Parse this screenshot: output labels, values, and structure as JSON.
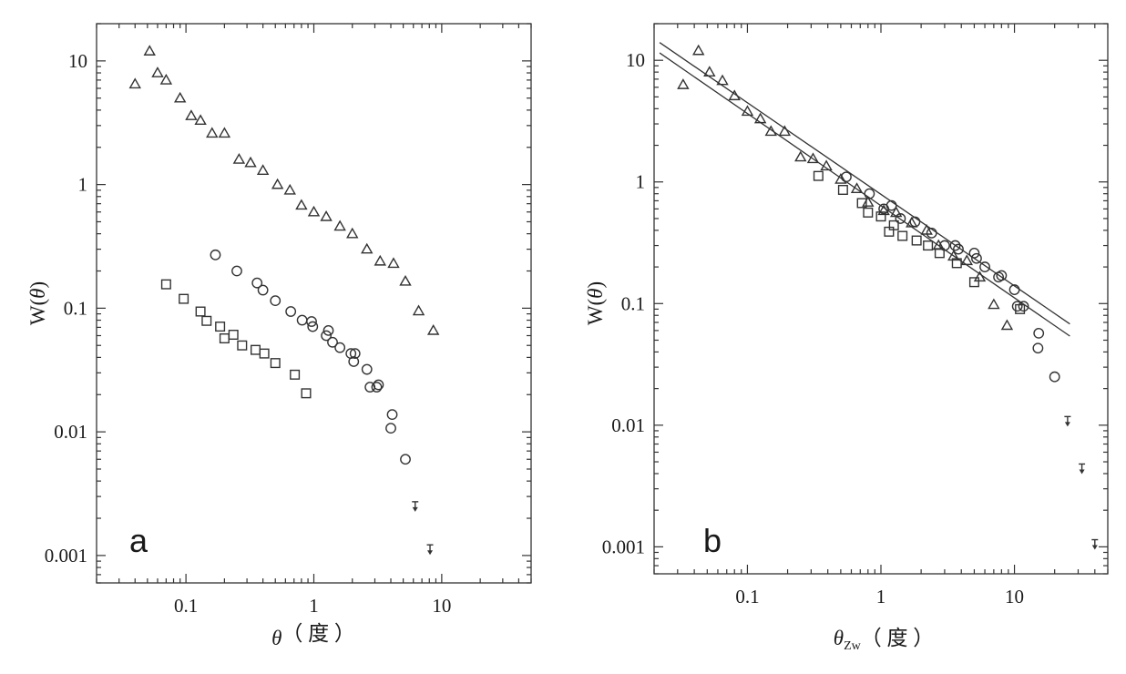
{
  "chart_data": [
    {
      "type": "scatter",
      "panel_label": "a",
      "xscale": "log",
      "yscale": "log",
      "xlim": [
        0.02,
        50
      ],
      "ylim": [
        0.0006,
        20
      ],
      "xticks": [
        0.1,
        1,
        10
      ],
      "xtick_labels": [
        "0.1",
        "1",
        "10"
      ],
      "yticks": [
        0.001,
        0.01,
        0.1,
        1,
        10
      ],
      "ytick_labels": [
        "0.001",
        "0.01",
        "0.1",
        "1",
        "10"
      ],
      "xlabel_main": "θ",
      "xlabel_sub": "",
      "xlabel_suffix": "（ 度 ）",
      "ylabel_main": "W(",
      "ylabel_var": "θ",
      "ylabel_close": ")",
      "grid": false,
      "series": [
        {
          "marker": "triangle",
          "points": [
            [
              0.04,
              6.5
            ],
            [
              0.052,
              12
            ],
            [
              0.06,
              8
            ],
            [
              0.07,
              7
            ],
            [
              0.09,
              5
            ],
            [
              0.11,
              3.6
            ],
            [
              0.13,
              3.3
            ],
            [
              0.16,
              2.6
            ],
            [
              0.2,
              2.6
            ],
            [
              0.26,
              1.6
            ],
            [
              0.32,
              1.5
            ],
            [
              0.4,
              1.3
            ],
            [
              0.52,
              1.0
            ],
            [
              0.65,
              0.9
            ],
            [
              0.8,
              0.68
            ],
            [
              1.0,
              0.6
            ],
            [
              1.25,
              0.55
            ],
            [
              1.6,
              0.46
            ],
            [
              2.0,
              0.4
            ],
            [
              2.6,
              0.3
            ],
            [
              3.3,
              0.24
            ],
            [
              4.2,
              0.23
            ],
            [
              5.2,
              0.165
            ],
            [
              6.6,
              0.095
            ],
            [
              8.6,
              0.066
            ]
          ]
        },
        {
          "marker": "circle",
          "points": [
            [
              0.17,
              0.27
            ],
            [
              0.25,
              0.2
            ],
            [
              0.36,
              0.16
            ],
            [
              0.4,
              0.14
            ],
            [
              0.5,
              0.115
            ],
            [
              0.66,
              0.094
            ],
            [
              0.81,
              0.08
            ],
            [
              0.96,
              0.078
            ],
            [
              0.98,
              0.071
            ],
            [
              1.25,
              0.06
            ],
            [
              1.3,
              0.066
            ],
            [
              1.4,
              0.053
            ],
            [
              1.6,
              0.048
            ],
            [
              1.95,
              0.043
            ],
            [
              2.05,
              0.037
            ],
            [
              2.1,
              0.043
            ],
            [
              2.6,
              0.032
            ],
            [
              2.75,
              0.023
            ],
            [
              3.1,
              0.023
            ],
            [
              3.2,
              0.024
            ],
            [
              4.0,
              0.0107
            ],
            [
              4.1,
              0.0138
            ],
            [
              5.2,
              0.006
            ]
          ]
        },
        {
          "marker": "square",
          "points": [
            [
              0.07,
              0.156
            ],
            [
              0.096,
              0.119
            ],
            [
              0.13,
              0.094
            ],
            [
              0.145,
              0.079
            ],
            [
              0.185,
              0.071
            ],
            [
              0.2,
              0.057
            ],
            [
              0.235,
              0.061
            ],
            [
              0.275,
              0.05
            ],
            [
              0.35,
              0.046
            ],
            [
              0.41,
              0.043
            ],
            [
              0.5,
              0.036
            ],
            [
              0.71,
              0.029
            ],
            [
              0.87,
              0.0205
            ]
          ]
        },
        {
          "marker": "upper-limit",
          "points": [
            [
              6.2,
              0.0025
            ],
            [
              8.1,
              0.00112
            ]
          ]
        }
      ]
    },
    {
      "type": "scatter",
      "panel_label": "b",
      "xscale": "log",
      "yscale": "log",
      "xlim": [
        0.02,
        50
      ],
      "ylim": [
        0.0006,
        20
      ],
      "xticks": [
        0.1,
        1,
        10
      ],
      "xtick_labels": [
        "0.1",
        "1",
        "10"
      ],
      "yticks": [
        0.001,
        0.01,
        0.1,
        1,
        10
      ],
      "ytick_labels": [
        "0.001",
        "0.01",
        "0.1",
        "1",
        "10"
      ],
      "xlabel_main": "θ",
      "xlabel_sub": "Zw",
      "xlabel_suffix": "（ 度 ）",
      "ylabel_main": "W(",
      "ylabel_var": "θ",
      "ylabel_close": ")",
      "grid": false,
      "fit_lines": [
        {
          "from": [
            0.022,
            14
          ],
          "to": [
            26,
            0.068
          ]
        },
        {
          "from": [
            0.022,
            11.5
          ],
          "to": [
            26,
            0.054
          ]
        }
      ],
      "series": [
        {
          "marker": "triangle",
          "points": [
            [
              0.033,
              6.3
            ],
            [
              0.043,
              12
            ],
            [
              0.052,
              8
            ],
            [
              0.065,
              6.8
            ],
            [
              0.08,
              5.1
            ],
            [
              0.1,
              3.8
            ],
            [
              0.125,
              3.3
            ],
            [
              0.15,
              2.6
            ],
            [
              0.19,
              2.6
            ],
            [
              0.25,
              1.6
            ],
            [
              0.31,
              1.55
            ],
            [
              0.39,
              1.35
            ],
            [
              0.5,
              1.05
            ],
            [
              0.66,
              0.88
            ],
            [
              0.8,
              0.68
            ],
            [
              1.05,
              0.58
            ],
            [
              1.3,
              0.56
            ],
            [
              1.7,
              0.46
            ],
            [
              2.2,
              0.4
            ],
            [
              2.7,
              0.3
            ],
            [
              3.5,
              0.245
            ],
            [
              4.4,
              0.225
            ],
            [
              5.5,
              0.165
            ],
            [
              7.0,
              0.098
            ],
            [
              8.8,
              0.066
            ]
          ]
        },
        {
          "marker": "circle",
          "points": [
            [
              0.55,
              1.1
            ],
            [
              0.82,
              0.8
            ],
            [
              1.05,
              0.6
            ],
            [
              1.2,
              0.64
            ],
            [
              1.4,
              0.5
            ],
            [
              1.8,
              0.47
            ],
            [
              2.4,
              0.38
            ],
            [
              3.0,
              0.3
            ],
            [
              3.6,
              0.3
            ],
            [
              3.8,
              0.28
            ],
            [
              5.0,
              0.26
            ],
            [
              5.2,
              0.235
            ],
            [
              6.0,
              0.2
            ],
            [
              7.6,
              0.165
            ],
            [
              8.0,
              0.17
            ],
            [
              10.0,
              0.13
            ],
            [
              10.5,
              0.095
            ],
            [
              11.7,
              0.095
            ],
            [
              15.2,
              0.057
            ],
            [
              15.0,
              0.043
            ],
            [
              20.0,
              0.025
            ]
          ]
        },
        {
          "marker": "square",
          "points": [
            [
              0.34,
              1.12
            ],
            [
              0.52,
              0.86
            ],
            [
              0.72,
              0.67
            ],
            [
              0.8,
              0.56
            ],
            [
              1.0,
              0.52
            ],
            [
              1.15,
              0.39
            ],
            [
              1.25,
              0.44
            ],
            [
              1.45,
              0.36
            ],
            [
              1.85,
              0.33
            ],
            [
              2.25,
              0.3
            ],
            [
              2.75,
              0.26
            ],
            [
              3.7,
              0.215
            ],
            [
              5.0,
              0.15
            ],
            [
              11.0,
              0.09
            ]
          ]
        },
        {
          "marker": "upper-limit",
          "points": [
            [
              25,
              0.0108
            ],
            [
              32,
              0.0044
            ],
            [
              40,
              0.00105
            ]
          ]
        }
      ]
    }
  ]
}
